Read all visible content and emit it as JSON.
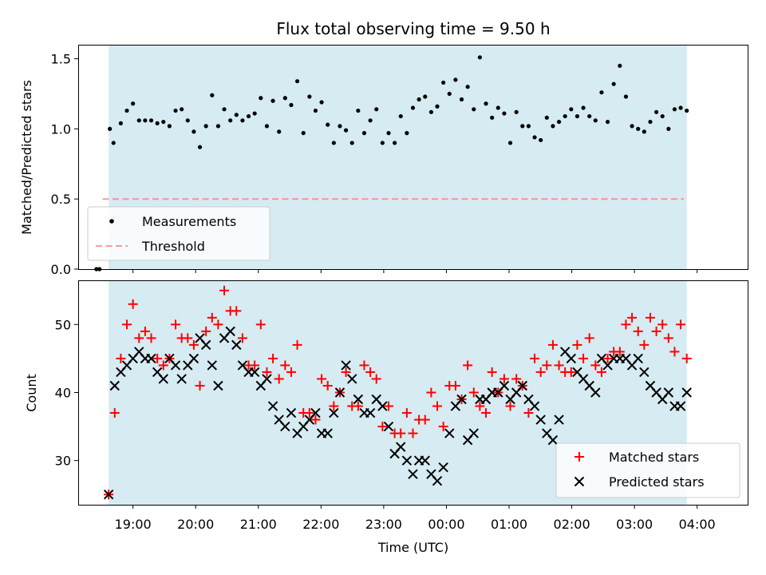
{
  "colors": {
    "shade": "#add8e6",
    "measurement": "#000000",
    "threshold": "#ff7f7f",
    "matched": "#ff0000",
    "predicted": "#000000"
  },
  "chart_data": [
    {
      "type": "scatter",
      "title": "Flux total observing time = 9.50 h",
      "xlabel": "",
      "ylabel": "Matched/Predicted stars",
      "xlim": [
        -2.0,
        108.0
      ],
      "ylim": [
        0,
        1.6
      ],
      "yticks": [
        0.0,
        0.5,
        1.0,
        1.5
      ],
      "ytick_labels": [
        "0.0",
        "0.5",
        "1.0",
        "1.5"
      ],
      "grid": false,
      "legend_position": "lower-left",
      "shaded_x_range": [
        3,
        98
      ],
      "threshold": {
        "name": "Threshold",
        "y": 0.5,
        "x_range": [
          2,
          97.5
        ]
      },
      "series": [
        {
          "name": "Measurements",
          "x": [
            1,
            1.5,
            3.2,
            3.8,
            5,
            6,
            7,
            8,
            9,
            10,
            11,
            12,
            13,
            14,
            15,
            16,
            17,
            18,
            19,
            20,
            21,
            22,
            23,
            24,
            25,
            26,
            27,
            28,
            29,
            30,
            31,
            32,
            33,
            34,
            35,
            36,
            37,
            38,
            39,
            40,
            41,
            42,
            43,
            44,
            45,
            46,
            47,
            48,
            49,
            50,
            51,
            52,
            53,
            54,
            55,
            56,
            57,
            58,
            59,
            60,
            61,
            62,
            63,
            64,
            65,
            66,
            67,
            68,
            69,
            70,
            71,
            72,
            73,
            74,
            75,
            76,
            77,
            78,
            79,
            80,
            81,
            82,
            83,
            84,
            85,
            86,
            87,
            88,
            89,
            90,
            91,
            92,
            93,
            94,
            95,
            96,
            97,
            98
          ],
          "y": [
            0,
            0,
            1.0,
            0.9,
            1.04,
            1.13,
            1.18,
            1.06,
            1.06,
            1.06,
            1.04,
            1.05,
            1.02,
            1.13,
            1.14,
            1.06,
            0.98,
            0.87,
            1.02,
            1.24,
            1.02,
            1.14,
            1.06,
            1.1,
            1.06,
            1.09,
            1.11,
            1.22,
            1.02,
            1.2,
            0.98,
            1.22,
            1.17,
            1.34,
            0.97,
            1.23,
            1.13,
            1.19,
            1.03,
            0.9,
            1.02,
            0.99,
            0.9,
            1.13,
            0.97,
            1.06,
            1.14,
            0.9,
            0.97,
            0.9,
            1.09,
            0.97,
            1.15,
            1.21,
            1.23,
            1.12,
            1.16,
            1.33,
            1.25,
            1.35,
            1.21,
            1.3,
            1.14,
            1.51,
            1.18,
            1.08,
            1.15,
            1.11,
            0.9,
            1.12,
            1.02,
            1.02,
            0.94,
            0.92,
            1.08,
            1.02,
            1.05,
            1.09,
            1.14,
            1.09,
            1.15,
            1.09,
            1.06,
            1.26,
            1.05,
            1.32,
            1.45,
            1.23,
            1.02,
            1.0,
            0.98,
            1.05,
            1.12,
            1.09,
            1.0,
            1.14,
            1.15,
            1.13
          ]
        }
      ]
    },
    {
      "type": "scatter",
      "title": "",
      "xlabel": "Time (UTC)",
      "ylabel": "Count",
      "xlim": [
        -2.0,
        108.0
      ],
      "ylim": [
        23.5,
        56.5
      ],
      "yticks": [
        30,
        40,
        50
      ],
      "ytick_labels": [
        "30",
        "40",
        "50"
      ],
      "xticks": [
        7,
        17.3,
        27.6,
        37.9,
        48.2,
        58.5,
        68.8,
        79.1,
        89.4,
        99.7
      ],
      "xtick_labels": [
        "19:00",
        "20:00",
        "21:00",
        "22:00",
        "23:00",
        "00:00",
        "01:00",
        "02:00",
        "03:00",
        "04:00"
      ],
      "grid": false,
      "legend_position": "lower-right",
      "shaded_x_range": [
        3,
        98
      ],
      "series": [
        {
          "name": "Matched stars",
          "marker": "plus",
          "x": [
            3,
            4,
            5,
            6,
            7,
            8,
            9,
            10,
            11,
            12,
            13,
            14,
            15,
            16,
            17,
            18,
            19,
            20,
            21,
            22,
            23,
            24,
            25,
            26,
            27,
            28,
            29,
            30,
            31,
            32,
            33,
            34,
            35,
            36,
            37,
            38,
            39,
            40,
            41,
            42,
            43,
            44,
            45,
            46,
            47,
            48,
            49,
            50,
            51,
            52,
            53,
            54,
            55,
            56,
            57,
            58,
            59,
            60,
            61,
            62,
            63,
            64,
            65,
            66,
            67,
            68,
            69,
            70,
            71,
            72,
            73,
            74,
            75,
            76,
            77,
            78,
            79,
            80,
            81,
            82,
            83,
            84,
            85,
            86,
            87,
            88,
            89,
            90,
            91,
            92,
            93,
            94,
            95,
            96,
            97,
            98
          ],
          "y": [
            25,
            37,
            45,
            50,
            53,
            48,
            49,
            48,
            45,
            44,
            45,
            50,
            48,
            48,
            47,
            41,
            49,
            51,
            50,
            55,
            52,
            52,
            48,
            44,
            44,
            50,
            43,
            45,
            42,
            44,
            43,
            47,
            37,
            37,
            36,
            42,
            41,
            38,
            40,
            43,
            38,
            38,
            44,
            43,
            42,
            35,
            38,
            34,
            34,
            37,
            34,
            36,
            36,
            40,
            38,
            35,
            41,
            41,
            39,
            44,
            40,
            38,
            37,
            43,
            40,
            42,
            38,
            42,
            41,
            37,
            45,
            43,
            44,
            47,
            44,
            43,
            43,
            47,
            45,
            48,
            44,
            43,
            45,
            46,
            46,
            50,
            51,
            49,
            47,
            51,
            49,
            50,
            48,
            46,
            50,
            45
          ]
        },
        {
          "name": "Predicted stars",
          "marker": "x",
          "x": [
            3,
            4,
            5,
            6,
            7,
            8,
            9,
            10,
            11,
            12,
            13,
            14,
            15,
            16,
            17,
            18,
            19,
            20,
            21,
            22,
            23,
            24,
            25,
            26,
            27,
            28,
            29,
            30,
            31,
            32,
            33,
            34,
            35,
            36,
            37,
            38,
            39,
            40,
            41,
            42,
            43,
            44,
            45,
            46,
            47,
            48,
            49,
            50,
            51,
            52,
            53,
            54,
            55,
            56,
            57,
            58,
            59,
            60,
            61,
            62,
            63,
            64,
            65,
            66,
            67,
            68,
            69,
            70,
            71,
            72,
            73,
            74,
            75,
            76,
            77,
            78,
            79,
            80,
            81,
            82,
            83,
            84,
            85,
            86,
            87,
            88,
            89,
            90,
            91,
            92,
            93,
            94,
            95,
            96,
            97,
            98
          ],
          "y": [
            25,
            41,
            43,
            44,
            45,
            46,
            45,
            45,
            43,
            42,
            45,
            44,
            42,
            44,
            45,
            48,
            47,
            44,
            41,
            48,
            49,
            47,
            44,
            43,
            43,
            41,
            42,
            38,
            36,
            35,
            37,
            34,
            35,
            36,
            37,
            34,
            34,
            37,
            40,
            44,
            42,
            39,
            37,
            37,
            39,
            38,
            35,
            31,
            32,
            30,
            28,
            30,
            30,
            28,
            27,
            29,
            34,
            38,
            39,
            33,
            34,
            39,
            39,
            40,
            40,
            41,
            39,
            40,
            41,
            39,
            38,
            36,
            34,
            33,
            36,
            46,
            45,
            43,
            42,
            41,
            40,
            45,
            44,
            45,
            45,
            45,
            44,
            45,
            43,
            41,
            40,
            39,
            40,
            38,
            38,
            40
          ]
        }
      ]
    }
  ]
}
